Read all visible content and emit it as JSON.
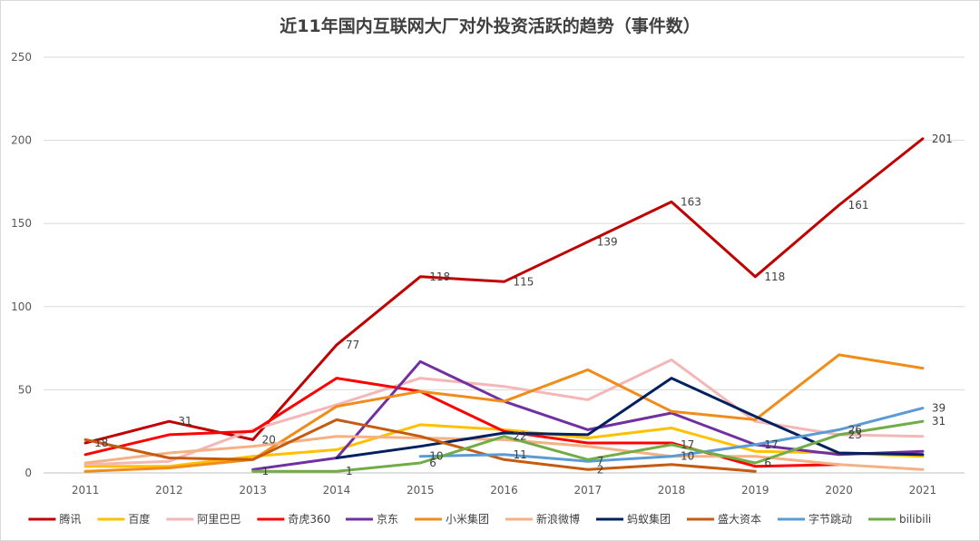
{
  "chart_data": {
    "type": "line",
    "title": "近11年国内互联网大厂对外投资活跃的趋势（事件数）",
    "xlabel": "",
    "ylabel": "",
    "ylim": [
      0,
      250
    ],
    "y_ticks": [
      0,
      50,
      100,
      150,
      200,
      250
    ],
    "grid": true,
    "legend_position": "bottom",
    "categories": [
      "2011",
      "2012",
      "2013",
      "2014",
      "2015",
      "2016",
      "2017",
      "2018",
      "2019",
      "2020",
      "2021"
    ],
    "series": [
      {
        "name": "腾讯",
        "color": "#c00000",
        "values": [
          18,
          31,
          20,
          77,
          118,
          115,
          139,
          163,
          118,
          161,
          201
        ],
        "labels": [
          "18",
          "31",
          "20",
          "77",
          "118",
          "115",
          "139",
          "163",
          "118",
          "161",
          "201"
        ]
      },
      {
        "name": "百度",
        "color": "#ffc000",
        "values": [
          4,
          4,
          10,
          14,
          29,
          26,
          21,
          27,
          13,
          12,
          10
        ],
        "labels": [
          null,
          null,
          null,
          null,
          null,
          null,
          null,
          null,
          null,
          null,
          null
        ]
      },
      {
        "name": "阿里巴巴",
        "color": "#f4b6b6",
        "values": [
          5,
          7,
          26,
          41,
          57,
          52,
          44,
          68,
          31,
          23,
          22
        ],
        "labels": [
          null,
          null,
          null,
          null,
          null,
          null,
          null,
          null,
          null,
          null,
          null
        ]
      },
      {
        "name": "奇虎360",
        "color": "#ff0000",
        "values": [
          11,
          23,
          25,
          57,
          49,
          25,
          18,
          18,
          4,
          5,
          null
        ],
        "labels": [
          null,
          null,
          null,
          null,
          null,
          null,
          null,
          null,
          null,
          null,
          null
        ]
      },
      {
        "name": "京东",
        "color": "#7030a0",
        "values": [
          null,
          null,
          2,
          9,
          67,
          43,
          26,
          36,
          17,
          11,
          13
        ],
        "labels": [
          null,
          null,
          null,
          null,
          null,
          null,
          null,
          null,
          "17",
          null,
          null
        ]
      },
      {
        "name": "小米集团",
        "color": "#f08c1a",
        "values": [
          1,
          3,
          8,
          40,
          49,
          43,
          62,
          37,
          32,
          71,
          63
        ],
        "labels": [
          null,
          null,
          null,
          null,
          null,
          null,
          null,
          null,
          null,
          null,
          null
        ]
      },
      {
        "name": "新浪微博",
        "color": "#f4b183",
        "values": [
          6,
          12,
          16,
          22,
          21,
          20,
          16,
          10,
          10,
          5,
          2
        ],
        "labels": [
          null,
          null,
          null,
          null,
          null,
          null,
          null,
          null,
          null,
          null,
          null
        ]
      },
      {
        "name": "蚂蚁集团",
        "color": "#002060",
        "values": [
          null,
          null,
          null,
          9,
          16,
          24,
          23,
          57,
          34,
          12,
          11
        ],
        "labels": [
          null,
          null,
          null,
          null,
          null,
          null,
          null,
          null,
          null,
          null,
          null
        ]
      },
      {
        "name": "盛大资本",
        "color": "#c55a11",
        "values": [
          20,
          9,
          8,
          32,
          22,
          8,
          2,
          5,
          1,
          null,
          null
        ],
        "labels": [
          null,
          null,
          null,
          null,
          null,
          null,
          "2",
          null,
          null,
          null,
          null
        ]
      },
      {
        "name": "字节跳动",
        "color": "#5b9bd5",
        "values": [
          null,
          null,
          null,
          null,
          10,
          11,
          7,
          10,
          17,
          26,
          39
        ],
        "labels": [
          null,
          null,
          null,
          null,
          "10",
          "11",
          "7",
          "10",
          null,
          "26",
          "39"
        ]
      },
      {
        "name": "bilibili",
        "color": "#70ad47",
        "values": [
          null,
          null,
          1,
          1,
          6,
          22,
          8,
          17,
          6,
          23,
          31
        ],
        "labels": [
          null,
          null,
          "1",
          "1",
          "6",
          "22",
          null,
          "17",
          "6",
          "23",
          "31"
        ]
      }
    ]
  }
}
